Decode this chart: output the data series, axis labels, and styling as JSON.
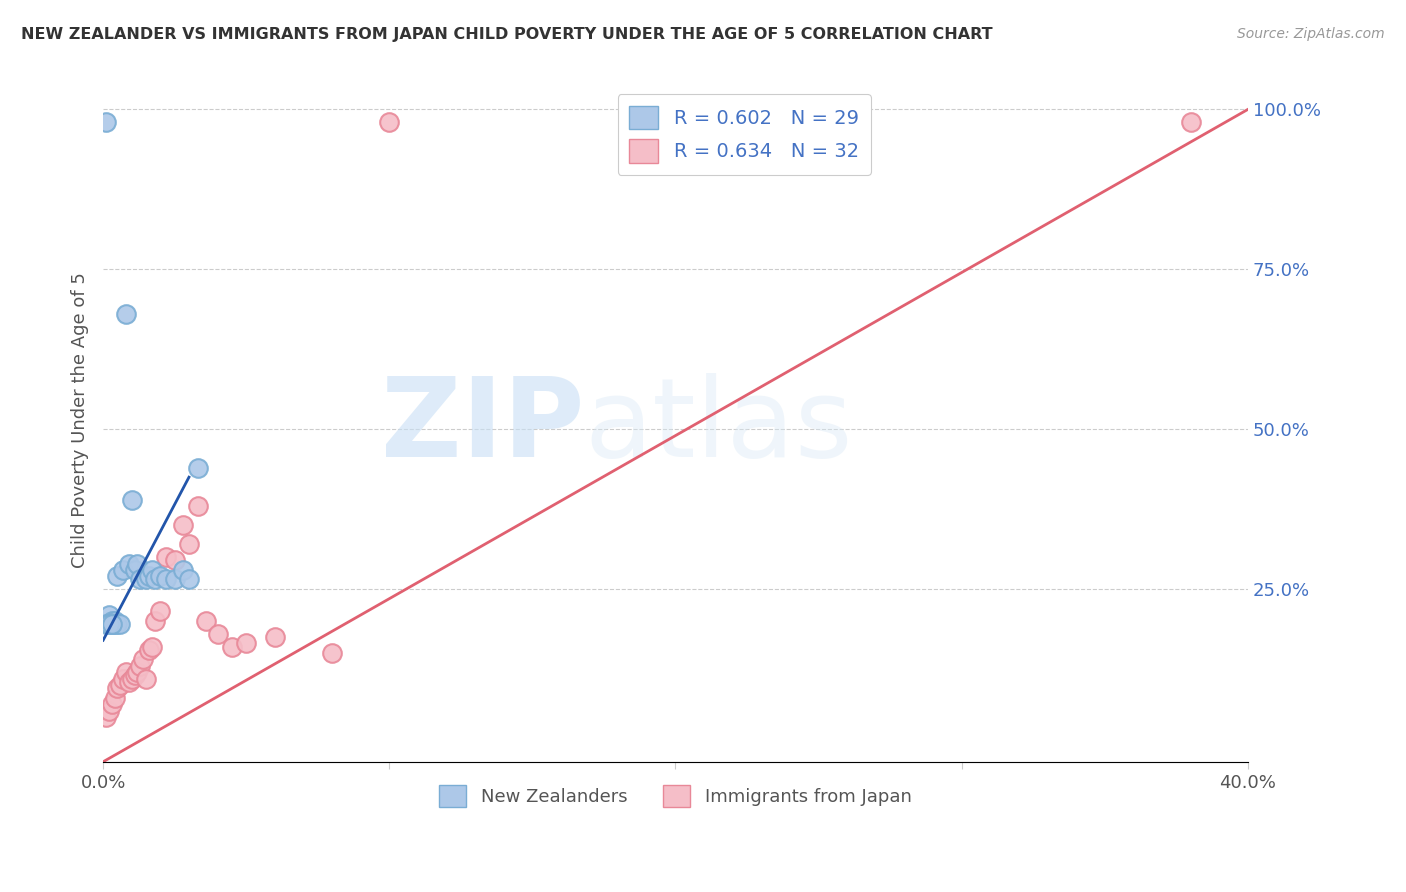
{
  "title": "NEW ZEALANDER VS IMMIGRANTS FROM JAPAN CHILD POVERTY UNDER THE AGE OF 5 CORRELATION CHART",
  "source": "Source: ZipAtlas.com",
  "ylabel": "Child Poverty Under the Age of 5",
  "x_min": 0.0,
  "x_max": 0.4,
  "y_min": -0.02,
  "y_max": 1.05,
  "x_ticks": [
    0.0,
    0.1,
    0.2,
    0.3,
    0.4
  ],
  "x_tick_labels": [
    "0.0%",
    "",
    "",
    "",
    "40.0%"
  ],
  "y_ticks_right": [
    0.25,
    0.5,
    0.75,
    1.0
  ],
  "y_tick_labels_right": [
    "25.0%",
    "50.0%",
    "75.0%",
    "100.0%"
  ],
  "grid_color": "#cccccc",
  "background_color": "#ffffff",
  "nz_color": "#adc8e8",
  "nz_edge_color": "#7aadd4",
  "jp_color": "#f5bec8",
  "jp_edge_color": "#e88898",
  "nz_R": 0.602,
  "nz_N": 29,
  "jp_R": 0.634,
  "jp_N": 32,
  "legend_label_nz": "New Zealanders",
  "legend_label_jp": "Immigrants from Japan",
  "nz_line_color": "#2255aa",
  "jp_line_color": "#e06070",
  "watermark_zip": "ZIP",
  "watermark_atlas": "atlas",
  "nz_scatter_x": [
    0.001,
    0.002,
    0.003,
    0.003,
    0.004,
    0.004,
    0.005,
    0.005,
    0.006,
    0.007,
    0.008,
    0.009,
    0.01,
    0.011,
    0.012,
    0.013,
    0.015,
    0.016,
    0.017,
    0.018,
    0.02,
    0.022,
    0.025,
    0.028,
    0.03,
    0.033,
    0.001,
    0.002,
    0.003
  ],
  "nz_scatter_y": [
    0.98,
    0.21,
    0.2,
    0.195,
    0.2,
    0.195,
    0.195,
    0.27,
    0.195,
    0.28,
    0.68,
    0.29,
    0.39,
    0.28,
    0.29,
    0.265,
    0.265,
    0.27,
    0.28,
    0.265,
    0.27,
    0.265,
    0.265,
    0.28,
    0.265,
    0.44,
    0.195,
    0.195,
    0.195
  ],
  "jp_scatter_x": [
    0.001,
    0.002,
    0.003,
    0.004,
    0.005,
    0.006,
    0.007,
    0.008,
    0.009,
    0.01,
    0.011,
    0.012,
    0.013,
    0.014,
    0.015,
    0.016,
    0.017,
    0.018,
    0.02,
    0.022,
    0.025,
    0.028,
    0.03,
    0.033,
    0.036,
    0.04,
    0.045,
    0.05,
    0.06,
    0.08,
    0.1,
    0.38
  ],
  "jp_scatter_y": [
    0.05,
    0.06,
    0.07,
    0.08,
    0.095,
    0.1,
    0.11,
    0.12,
    0.105,
    0.11,
    0.115,
    0.12,
    0.13,
    0.14,
    0.11,
    0.155,
    0.16,
    0.2,
    0.215,
    0.3,
    0.295,
    0.35,
    0.32,
    0.38,
    0.2,
    0.18,
    0.16,
    0.165,
    0.175,
    0.15,
    0.98,
    0.98
  ],
  "jp_line_slope": 2.55,
  "jp_line_intercept": -0.02,
  "nz_line_slope": 8.5,
  "nz_line_intercept": 0.17
}
